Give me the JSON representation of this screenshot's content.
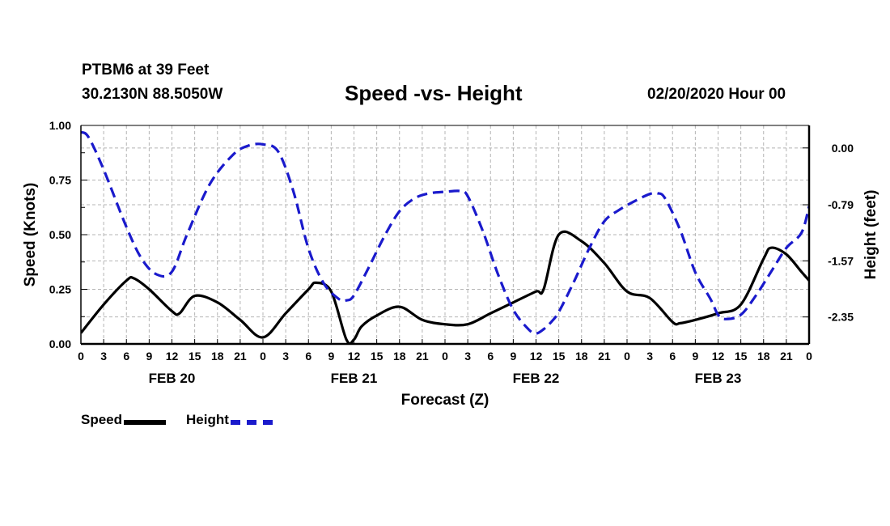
{
  "header": {
    "station": "PTBM6 at 39 Feet",
    "coords": "30.2130N 88.5050W",
    "title": "Speed -vs- Height",
    "datetime": "02/20/2020 Hour 00"
  },
  "colors": {
    "speed": "#000000",
    "height": "#1a1acc",
    "grid": "#b4b4b4"
  },
  "chart_data": {
    "type": "line",
    "title": "Speed -vs- Height",
    "xlabel": "Forecast (Z)",
    "ylabel": "Speed (Knots)",
    "y2label": "Height (feet)",
    "xlim": [
      0,
      96
    ],
    "ylim": [
      0,
      1.0
    ],
    "y2lim": [
      -2.725,
      0.313
    ],
    "y_ticks": [
      "0.00",
      "0.25",
      "0.50",
      "0.75",
      "1.00"
    ],
    "y_tick_values": [
      0,
      0.25,
      0.5,
      0.75,
      1.0
    ],
    "y2_ticks": [
      "0.00",
      "-0.79",
      "-1.57",
      "-2.35"
    ],
    "y2_tick_values": [
      0,
      -0.79,
      -1.57,
      -2.35
    ],
    "x_tick_labels": [
      "0",
      "3",
      "6",
      "9",
      "12",
      "15",
      "18",
      "21",
      "0",
      "3",
      "6",
      "9",
      "12",
      "15",
      "18",
      "21",
      "0",
      "3",
      "6",
      "9",
      "12",
      "15",
      "18",
      "21",
      "0",
      "3",
      "6",
      "9",
      "12",
      "15",
      "18",
      "21",
      "0"
    ],
    "day_labels": [
      {
        "label": "FEB 20",
        "hour": 12
      },
      {
        "label": "FEB 21",
        "hour": 36
      },
      {
        "label": "FEB 22",
        "hour": 60
      },
      {
        "label": "FEB 23",
        "hour": 84
      }
    ],
    "grid": true,
    "legend": "bottom-left",
    "series": [
      {
        "name": "Speed",
        "axis": "left",
        "style": "solid",
        "x": [
          0,
          3,
          6,
          7,
          9,
          12,
          13,
          15,
          18,
          21,
          24,
          27,
          30,
          31,
          33,
          35,
          36,
          37,
          39,
          42,
          45,
          48,
          51,
          54,
          57,
          60,
          61,
          63,
          66,
          69,
          72,
          75,
          78,
          79,
          81,
          84,
          87,
          90,
          91,
          93,
          95,
          96
        ],
        "values": [
          0.05,
          0.18,
          0.29,
          0.3,
          0.25,
          0.15,
          0.14,
          0.22,
          0.19,
          0.11,
          0.03,
          0.14,
          0.25,
          0.28,
          0.24,
          0.02,
          0.02,
          0.08,
          0.13,
          0.17,
          0.11,
          0.09,
          0.09,
          0.14,
          0.19,
          0.24,
          0.25,
          0.5,
          0.47,
          0.37,
          0.24,
          0.21,
          0.1,
          0.095,
          0.11,
          0.14,
          0.18,
          0.39,
          0.44,
          0.41,
          0.33,
          0.29
        ]
      },
      {
        "name": "Height",
        "axis": "right",
        "style": "dashed",
        "x": [
          0,
          1,
          3,
          6,
          8,
          10,
          12,
          14,
          17,
          20,
          22,
          24,
          26,
          28,
          30,
          32,
          34,
          35,
          36,
          38,
          40,
          42,
          44,
          46,
          48,
          50,
          51,
          53,
          55,
          57,
          59,
          60,
          61,
          62,
          63,
          65,
          67,
          69,
          71,
          73,
          75,
          76,
          77,
          79,
          81,
          83,
          84,
          85,
          87,
          89,
          91,
          93,
          95,
          96
        ],
        "values": [
          0.22,
          0.15,
          -0.3,
          -1.1,
          -1.54,
          -1.76,
          -1.72,
          -1.2,
          -0.5,
          -0.1,
          0.03,
          0.05,
          -0.05,
          -0.6,
          -1.4,
          -1.88,
          -2.1,
          -2.12,
          -2.05,
          -1.65,
          -1.23,
          -0.88,
          -0.7,
          -0.63,
          -0.61,
          -0.6,
          -0.67,
          -1.16,
          -1.76,
          -2.25,
          -2.52,
          -2.58,
          -2.52,
          -2.42,
          -2.28,
          -1.86,
          -1.4,
          -1.02,
          -0.86,
          -0.74,
          -0.64,
          -0.63,
          -0.7,
          -1.14,
          -1.73,
          -2.1,
          -2.32,
          -2.38,
          -2.32,
          -2.05,
          -1.72,
          -1.39,
          -1.18,
          -0.81
        ]
      }
    ]
  },
  "legend": {
    "speed_label": "Speed",
    "height_label": "Height"
  }
}
